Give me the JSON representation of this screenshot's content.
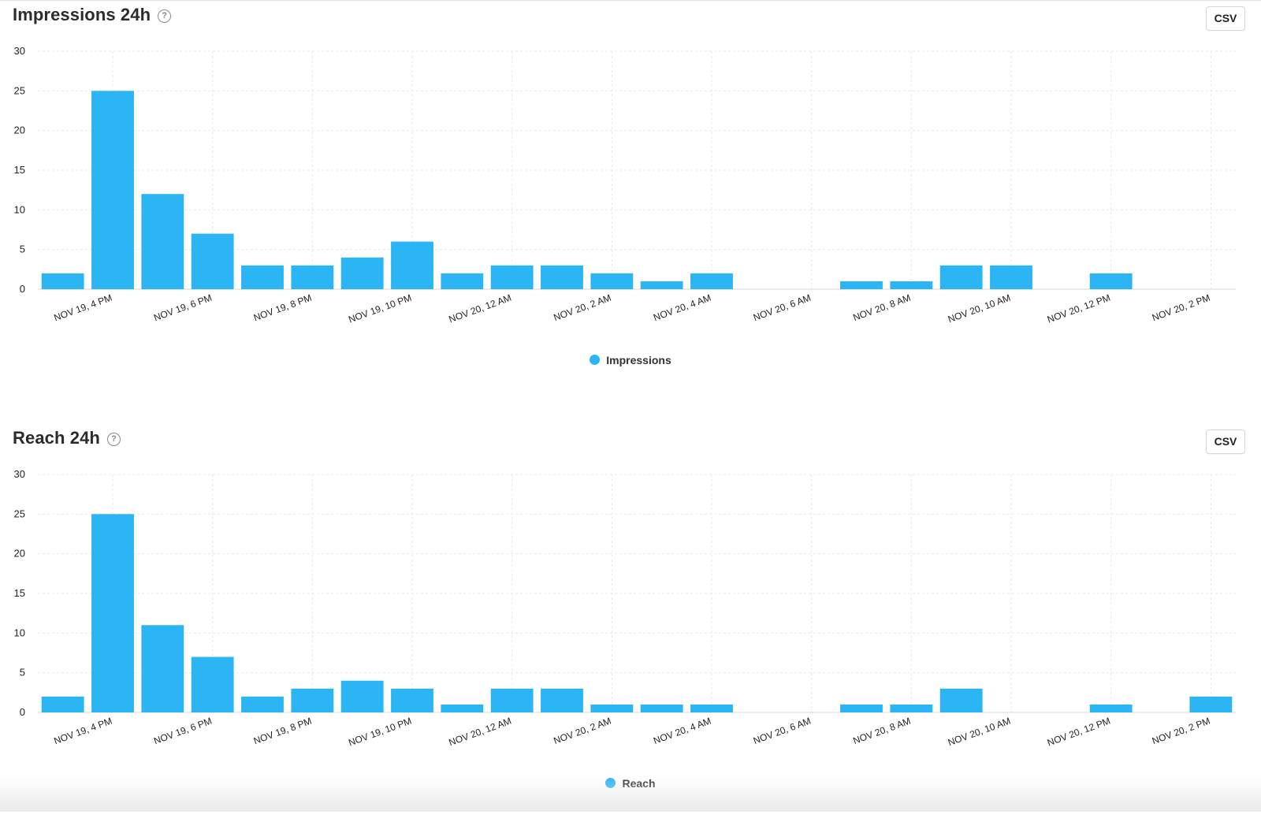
{
  "panels": [
    {
      "title": "Impressions 24h",
      "help_icon": "question-circle-icon",
      "csv_label": "CSV",
      "legend_label": "Impressions"
    },
    {
      "title": "Reach 24h",
      "help_icon": "question-circle-icon",
      "csv_label": "CSV",
      "legend_label": "Reach"
    }
  ],
  "colors": {
    "bar": "#2bb5f5",
    "grid": "#e9e9e9",
    "axis_text": "#222222"
  },
  "chart_data": [
    {
      "type": "bar",
      "title": "Impressions 24h",
      "xlabel": "",
      "ylabel": "",
      "ylim": [
        0,
        30
      ],
      "yticks": [
        0,
        5,
        10,
        15,
        20,
        25,
        30
      ],
      "grid": true,
      "legend_placement": "bottom-center",
      "x_tick_labels": [
        "NOV 19, 4 PM",
        "NOV 19, 6 PM",
        "NOV 19, 8 PM",
        "NOV 19, 10 PM",
        "NOV 20, 12 AM",
        "NOV 20, 2 AM",
        "NOV 20, 4 AM",
        "NOV 20, 6 AM",
        "NOV 20, 8 AM",
        "NOV 20, 10 AM",
        "NOV 20, 12 PM",
        "NOV 20, 2 PM"
      ],
      "series": [
        {
          "name": "Impressions",
          "values": [
            2,
            25,
            12,
            7,
            3,
            3,
            4,
            6,
            2,
            3,
            3,
            2,
            1,
            2,
            0,
            0,
            1,
            1,
            3,
            3,
            0,
            2,
            0,
            0
          ]
        }
      ]
    },
    {
      "type": "bar",
      "title": "Reach 24h",
      "xlabel": "",
      "ylabel": "",
      "ylim": [
        0,
        30
      ],
      "yticks": [
        0,
        5,
        10,
        15,
        20,
        25,
        30
      ],
      "grid": true,
      "legend_placement": "bottom-center",
      "x_tick_labels": [
        "NOV 19, 4 PM",
        "NOV 19, 6 PM",
        "NOV 19, 8 PM",
        "NOV 19, 10 PM",
        "NOV 20, 12 AM",
        "NOV 20, 2 AM",
        "NOV 20, 4 AM",
        "NOV 20, 6 AM",
        "NOV 20, 8 AM",
        "NOV 20, 10 AM",
        "NOV 20, 12 PM",
        "NOV 20, 2 PM"
      ],
      "series": [
        {
          "name": "Reach",
          "values": [
            2,
            25,
            11,
            7,
            2,
            3,
            4,
            3,
            1,
            3,
            3,
            1,
            1,
            1,
            0,
            0,
            1,
            1,
            3,
            0,
            0,
            1,
            0,
            2
          ]
        }
      ]
    }
  ]
}
